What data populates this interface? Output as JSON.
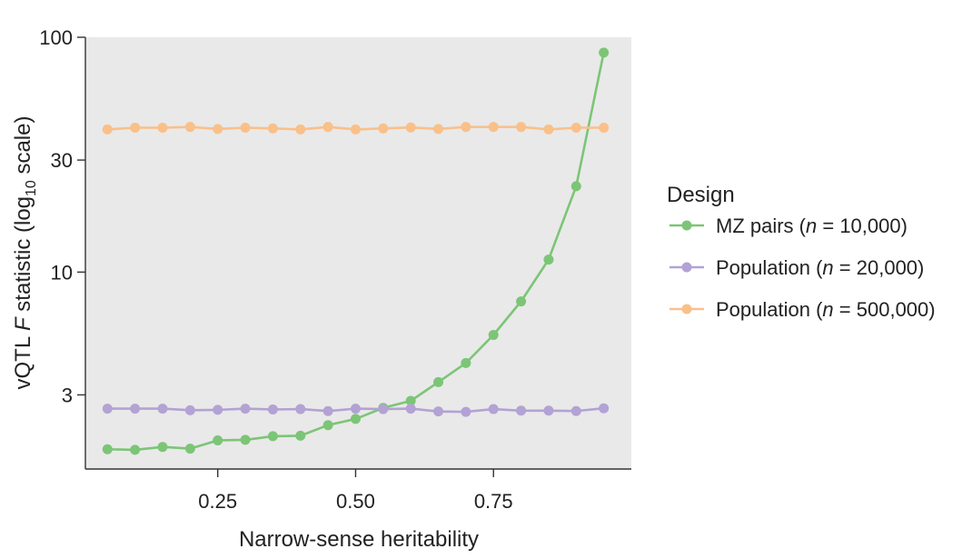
{
  "chart_data": {
    "type": "line",
    "xlabel": "Narrow-sense heritability",
    "ylabel_main": "vQTL ",
    "ylabel_italic": "F",
    "ylabel_rest": " statistic (log",
    "ylabel_sub": "10",
    "ylabel_end": " scale)",
    "yscale": "log10",
    "xlim": [
      0.01,
      1.0
    ],
    "ylim": [
      1.45,
      100
    ],
    "x_ticks": [
      0.25,
      0.5,
      0.75
    ],
    "x_tick_labels": [
      "0.25",
      "0.50",
      "0.75"
    ],
    "y_ticks": [
      3,
      10,
      30,
      100
    ],
    "y_tick_labels": [
      "3",
      "10",
      "30",
      "100"
    ],
    "grid": false,
    "plot_background": "#e9e9e9",
    "legend": {
      "title": "Design",
      "placement": "right",
      "entries": [
        {
          "prefix": "MZ pairs (",
          "italic": "n",
          "suffix": " = 10,000)"
        },
        {
          "prefix": "Population (",
          "italic": "n",
          "suffix": " = 20,000)"
        },
        {
          "prefix": "Population (",
          "italic": "n",
          "suffix": " = 500,000)"
        }
      ]
    },
    "x": [
      0.05,
      0.1,
      0.15,
      0.2,
      0.25,
      0.3,
      0.35,
      0.4,
      0.45,
      0.5,
      0.55,
      0.6,
      0.65,
      0.7,
      0.75,
      0.8,
      0.85,
      0.9,
      0.95
    ],
    "series": [
      {
        "color": "#7cc576",
        "values": [
          1.76,
          1.75,
          1.8,
          1.77,
          1.92,
          1.93,
          2.0,
          2.01,
          2.23,
          2.37,
          2.64,
          2.83,
          3.4,
          4.1,
          5.4,
          7.5,
          11.3,
          23.2,
          86
        ]
      },
      {
        "color": "#b3a2d4",
        "values": [
          2.62,
          2.62,
          2.62,
          2.58,
          2.59,
          2.62,
          2.6,
          2.61,
          2.56,
          2.62,
          2.61,
          2.62,
          2.55,
          2.54,
          2.61,
          2.57,
          2.57,
          2.56,
          2.63
        ]
      },
      {
        "color": "#f9c08a",
        "values": [
          40.5,
          41.2,
          41.2,
          41.5,
          40.7,
          41.2,
          40.9,
          40.5,
          41.5,
          40.5,
          40.9,
          41.3,
          40.7,
          41.5,
          41.5,
          41.5,
          40.5,
          41.2,
          41.2
        ]
      }
    ]
  }
}
